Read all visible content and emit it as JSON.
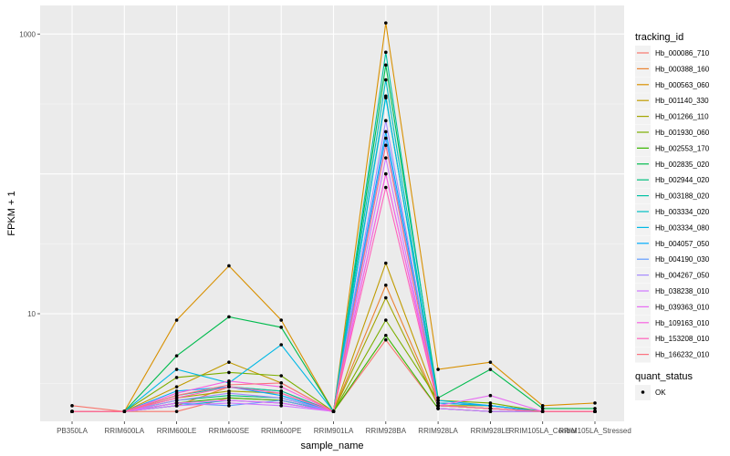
{
  "chart_data": {
    "type": "line",
    "title": "",
    "xlabel": "sample_name",
    "ylabel": "FPKM + 1",
    "y_scale": "log10",
    "ylim": [
      1.7,
      1600
    ],
    "grid": true,
    "legend_position": "right",
    "y_ticks": [
      10,
      1000
    ],
    "categories": [
      "PB350LA",
      "RRIM600LA",
      "RRIM600LE",
      "RRIM600SE",
      "RRIM600PE",
      "RRIM901LA",
      "RRIM928BA",
      "RRIM928LA",
      "RRIM928LE",
      "RRIM105LA_Control",
      "RRIM105LA_Stressed"
    ],
    "color_legend_title": "tracking_id",
    "shape_legend_title": "quant_status",
    "shape_legend_items": [
      "OK"
    ],
    "series": [
      {
        "name": "Hb_000086_710",
        "color": "#F8766D",
        "values": [
          2.2,
          2.0,
          2.0,
          2.5,
          2.4,
          2.0,
          6.5,
          2.1,
          2.0,
          2.0,
          2.0
        ]
      },
      {
        "name": "Hb_000388_160",
        "color": "#EA8331",
        "values": [
          2.0,
          2.0,
          2.2,
          3.0,
          2.8,
          2.0,
          16.0,
          2.2,
          2.1,
          2.0,
          2.0
        ]
      },
      {
        "name": "Hb_000563_060",
        "color": "#D89000",
        "values": [
          2.0,
          2.0,
          9.0,
          22.0,
          9.0,
          2.0,
          1200.0,
          4.0,
          4.5,
          2.2,
          2.3
        ]
      },
      {
        "name": "Hb_001140_330",
        "color": "#C09B00",
        "values": [
          2.0,
          2.0,
          3.0,
          4.5,
          3.2,
          2.0,
          23.0,
          2.3,
          2.2,
          2.0,
          2.0
        ]
      },
      {
        "name": "Hb_001266_110",
        "color": "#A3A500",
        "values": [
          2.0,
          2.0,
          2.5,
          2.8,
          2.7,
          2.0,
          13.0,
          2.2,
          2.2,
          2.0,
          2.0
        ]
      },
      {
        "name": "Hb_001930_060",
        "color": "#7CAE00",
        "values": [
          2.0,
          2.0,
          3.5,
          3.8,
          3.6,
          2.0,
          9.0,
          2.4,
          2.3,
          2.0,
          2.0
        ]
      },
      {
        "name": "Hb_002553_170",
        "color": "#39B600",
        "values": [
          2.0,
          2.0,
          2.3,
          2.5,
          2.4,
          2.0,
          7.0,
          2.1,
          2.0,
          2.0,
          2.0
        ]
      },
      {
        "name": "Hb_002835_020",
        "color": "#00BB4E",
        "values": [
          2.0,
          2.0,
          5.0,
          9.5,
          8.0,
          2.0,
          600.0,
          2.5,
          4.0,
          2.1,
          2.1
        ]
      },
      {
        "name": "Hb_002944_020",
        "color": "#00BF7D",
        "values": [
          2.0,
          2.0,
          2.4,
          2.6,
          2.5,
          2.0,
          360.0,
          2.2,
          2.1,
          2.0,
          2.0
        ]
      },
      {
        "name": "Hb_003188_020",
        "color": "#00C1A3",
        "values": [
          2.0,
          2.0,
          2.6,
          3.0,
          2.8,
          2.0,
          740.0,
          2.3,
          2.2,
          2.0,
          2.0
        ]
      },
      {
        "name": "Hb_003334_020",
        "color": "#00BFC4",
        "values": [
          2.0,
          2.0,
          2.2,
          2.4,
          2.3,
          2.0,
          470.0,
          2.2,
          2.1,
          2.0,
          2.0
        ]
      },
      {
        "name": "Hb_003334_080",
        "color": "#00B8E5",
        "values": [
          2.0,
          2.0,
          4.0,
          3.2,
          6.0,
          2.0,
          350.0,
          2.4,
          2.2,
          2.0,
          2.0
        ]
      },
      {
        "name": "Hb_004057_050",
        "color": "#00ABFD",
        "values": [
          2.0,
          2.0,
          2.8,
          3.0,
          2.6,
          2.0,
          200.0,
          2.3,
          2.2,
          2.0,
          2.0
        ]
      },
      {
        "name": "Hb_004190_030",
        "color": "#619CFF",
        "values": [
          2.0,
          2.0,
          2.3,
          2.2,
          2.4,
          2.0,
          180.0,
          2.1,
          2.0,
          2.0,
          2.0
        ]
      },
      {
        "name": "Hb_004267_050",
        "color": "#A58AFF",
        "values": [
          2.0,
          2.0,
          2.4,
          2.7,
          2.5,
          2.0,
          240.0,
          2.2,
          2.1,
          2.0,
          2.0
        ]
      },
      {
        "name": "Hb_038238_010",
        "color": "#CF78FF",
        "values": [
          2.0,
          2.0,
          2.2,
          2.3,
          2.2,
          2.0,
          130.0,
          2.1,
          2.0,
          2.0,
          2.0
        ]
      },
      {
        "name": "Hb_039363_010",
        "color": "#E76BF3",
        "values": [
          2.0,
          2.0,
          2.3,
          2.4,
          2.3,
          2.0,
          100.0,
          2.2,
          2.6,
          2.0,
          2.0
        ]
      },
      {
        "name": "Hb_109163_010",
        "color": "#F763E0",
        "values": [
          2.0,
          2.0,
          2.7,
          3.3,
          3.0,
          2.0,
          100.0,
          2.2,
          2.1,
          2.0,
          2.0
        ]
      },
      {
        "name": "Hb_153208_010",
        "color": "#FF62BC",
        "values": [
          2.0,
          2.0,
          2.5,
          3.0,
          2.7,
          2.0,
          80.0,
          2.2,
          2.1,
          2.0,
          2.0
        ]
      },
      {
        "name": "Hb_166232_010",
        "color": "#FC717F",
        "values": [
          2.0,
          2.0,
          2.6,
          3.1,
          3.2,
          2.0,
          160.0,
          2.2,
          2.1,
          2.0,
          2.0
        ]
      }
    ]
  }
}
